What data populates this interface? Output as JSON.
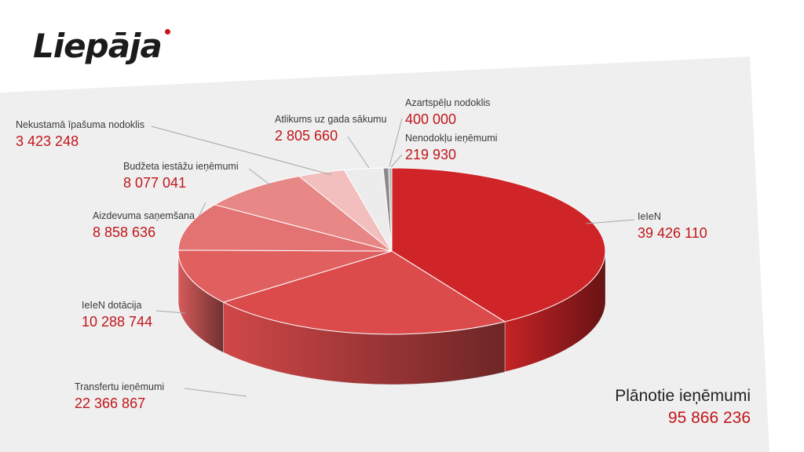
{
  "logo": {
    "text": "Liepāja"
  },
  "colors": {
    "accent": "#c4161c",
    "value_text": "#c0161b",
    "panel": "#efefef",
    "slice_colors": [
      "#cf2528",
      "#db4b4c",
      "#e06060",
      "#e37272",
      "#e78886",
      "#f2bebe",
      "#ececec",
      "#8a8a8a",
      "#b5b5b5"
    ]
  },
  "chart_data": {
    "type": "pie",
    "title": "",
    "slices": [
      {
        "label": "IeIeN",
        "value": "39 426 110",
        "amount": 39426110
      },
      {
        "label": "Transfertu ieņēmumi",
        "value": "22 366 867",
        "amount": 22366867
      },
      {
        "label": "IeIeN dotācija",
        "value": "10 288 744",
        "amount": 10288744
      },
      {
        "label": "Aizdevuma saņemšana",
        "value": "8 858 636",
        "amount": 8858636
      },
      {
        "label": "Budžeta iestāžu ieņēmumi",
        "value": "8 077 041",
        "amount": 8077041
      },
      {
        "label": "Nekustamā īpašuma nodoklis",
        "value": "3 423 248",
        "amount": 3423248
      },
      {
        "label": "Atlikums uz gada sākumu",
        "value": "2 805 660",
        "amount": 2805660
      },
      {
        "label": "Azartspēļu nodoklis",
        "value": "400 000",
        "amount": 400000
      },
      {
        "label": "Nenodokļu ieņēmumi",
        "value": "219 930",
        "amount": 219930
      }
    ],
    "total": {
      "label": "Plānotie ieņēmumi",
      "value": "95 866 236",
      "amount": 95866236
    }
  }
}
